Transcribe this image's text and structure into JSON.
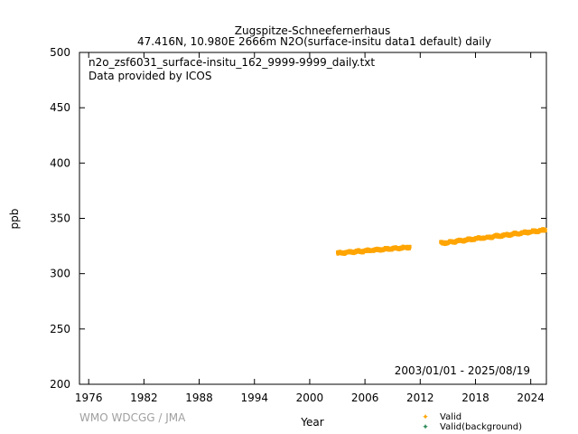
{
  "chart_data": {
    "type": "scatter",
    "title": "Zugspitze-Schneefernerhaus",
    "subtitle": "47.416N, 10.980E 2666m    N2O(surface-insitu data1 default) daily",
    "annotations": [
      "n2o_zsf6031_surface-insitu_162_9999-9999_daily.txt",
      "Data provided by ICOS"
    ],
    "date_range": "2003/01/01 - 2025/08/19",
    "credit": "WMO WDCGG / JMA",
    "xlabel": "Year",
    "ylabel": "ppb",
    "xlim": [
      1975,
      2025.7
    ],
    "ylim": [
      200,
      500
    ],
    "xticks": [
      1976,
      1982,
      1988,
      1994,
      2000,
      2006,
      2012,
      2018,
      2024
    ],
    "yticks": [
      200,
      250,
      300,
      350,
      400,
      450,
      500
    ],
    "grid": false,
    "legend_position": "bottom-right",
    "series": [
      {
        "name": "Valid",
        "color": "#ffa500",
        "segments": [
          {
            "x": [
              2003.0,
              2010.9
            ],
            "y": [
              318.5,
              324.0
            ]
          },
          {
            "x": [
              2014.2,
              2025.63
            ],
            "y": [
              327.5,
              339.5
            ]
          }
        ]
      },
      {
        "name": "Valid(background)",
        "color": "#2e8b57",
        "segments": []
      }
    ]
  }
}
